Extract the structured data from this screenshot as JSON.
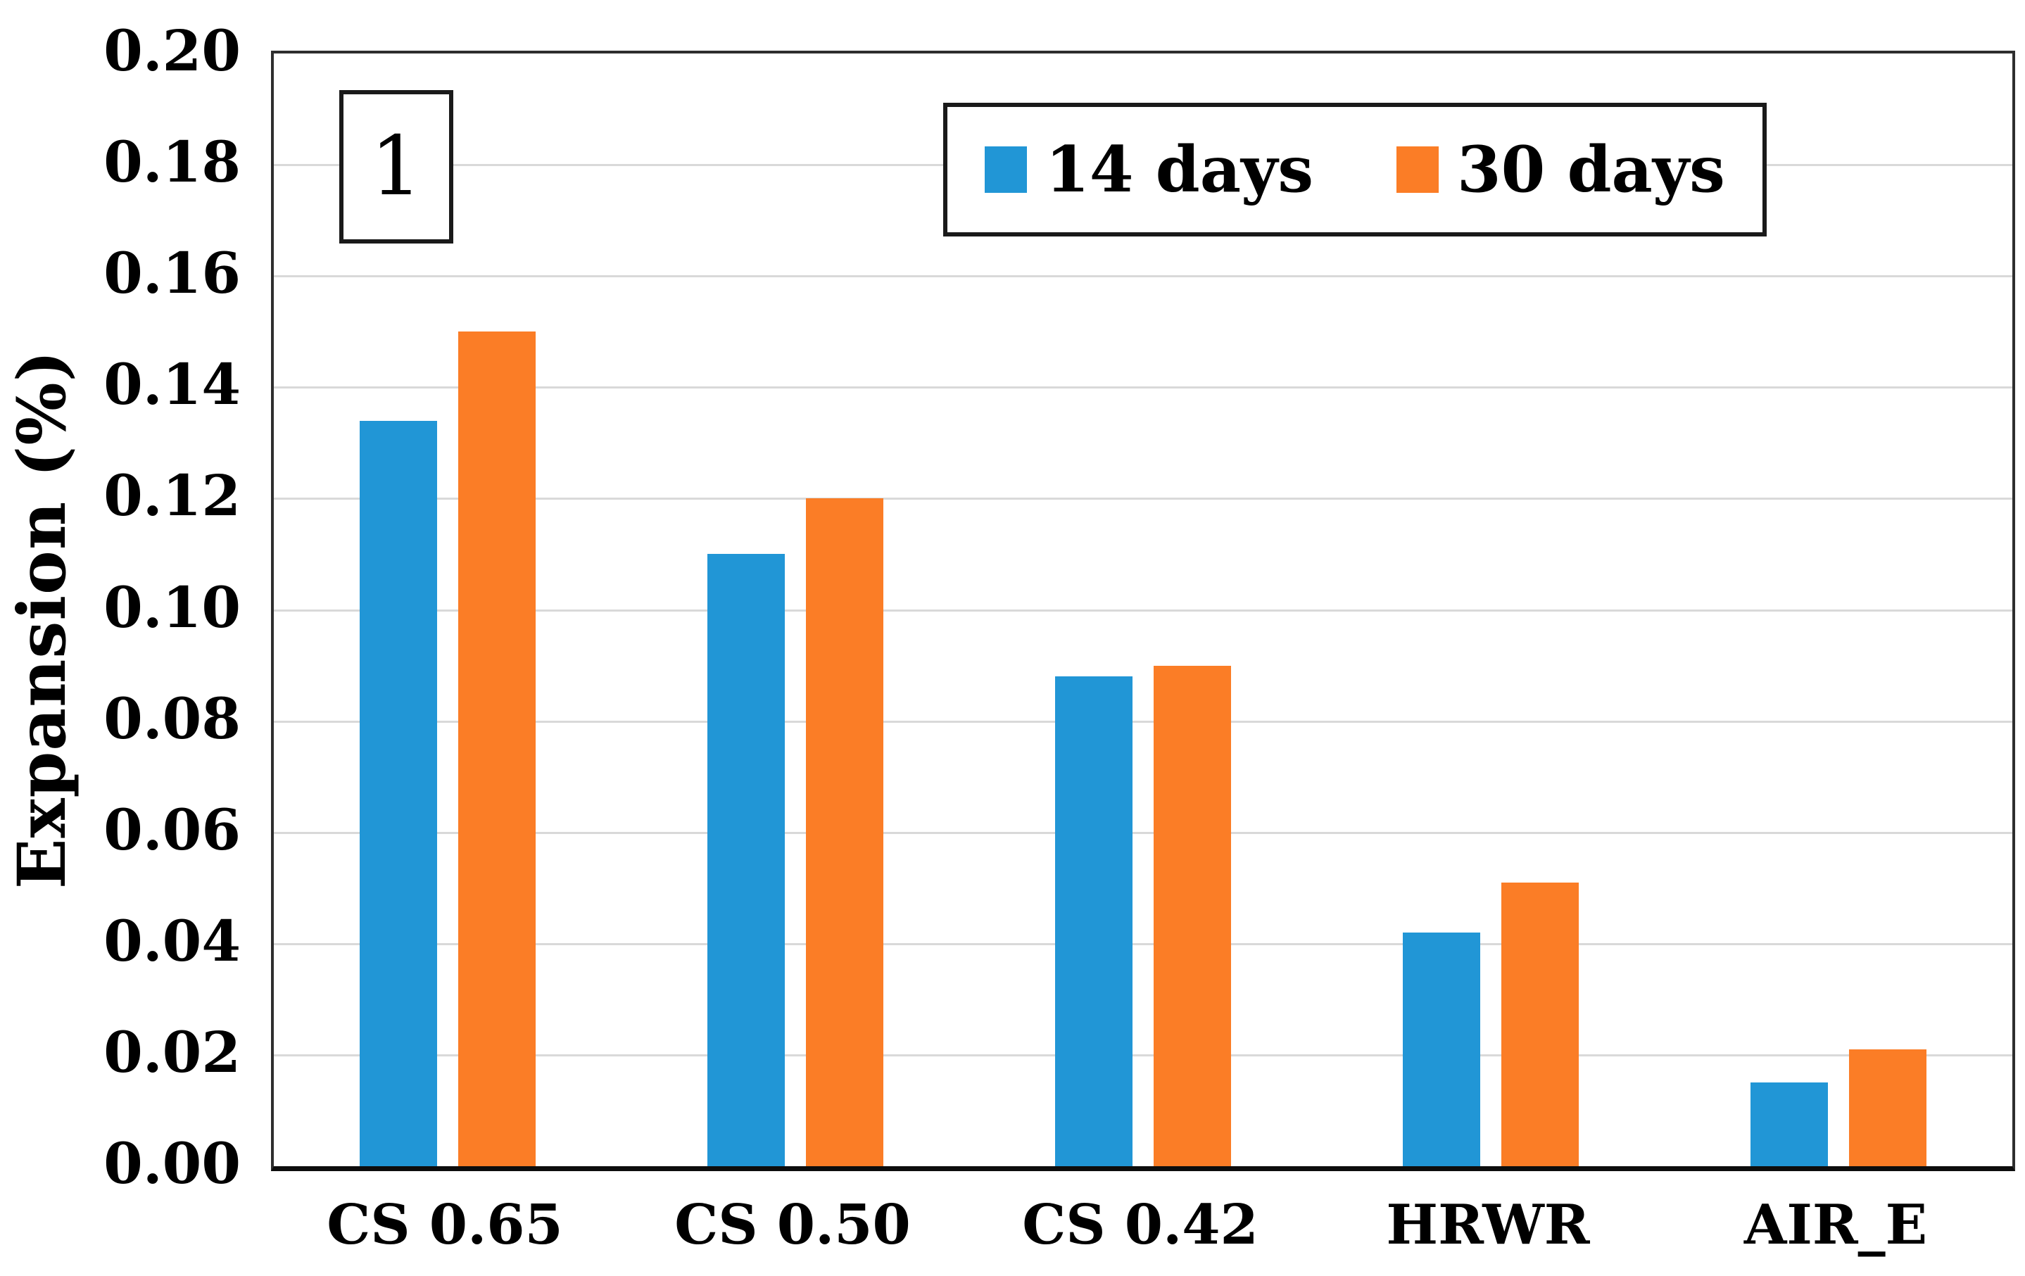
{
  "figure": {
    "panel_label": "1"
  },
  "chart_data": {
    "type": "bar",
    "title": "",
    "categories": [
      "CS 0.65",
      "CS 0.50",
      "CS 0.42",
      "HRWR",
      "AIR_E"
    ],
    "series": [
      {
        "name": "14 days",
        "color": "#2196d6",
        "values": [
          0.134,
          0.11,
          0.088,
          0.042,
          0.015
        ]
      },
      {
        "name": "30 days",
        "color": "#fb7d26",
        "values": [
          0.15,
          0.12,
          0.09,
          0.051,
          0.021
        ]
      }
    ],
    "xlabel": "",
    "ylabel": "Expansion (%)",
    "ylim": [
      0.0,
      0.2
    ],
    "ytick_step": 0.02,
    "yticks": [
      "0.00",
      "0.02",
      "0.04",
      "0.06",
      "0.08",
      "0.10",
      "0.12",
      "0.14",
      "0.16",
      "0.18",
      "0.20"
    ],
    "grid": "horizontal",
    "gridline_color": "#d9d9d9",
    "frame_color": "#2e2e2e",
    "legend_position": "top-right-inside"
  }
}
